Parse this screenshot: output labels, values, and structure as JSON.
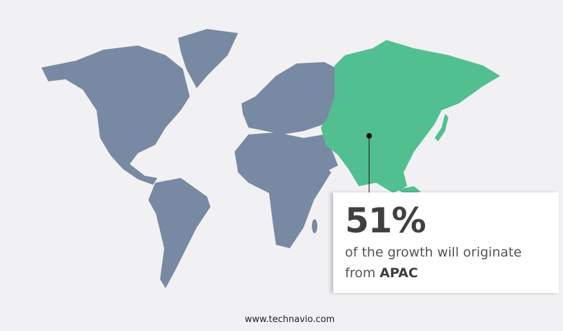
{
  "colors": {
    "background": "#f1f1f3",
    "land": "#7889a3",
    "highlight": "#52bf90",
    "text": "#404040"
  },
  "highlighted_region": "APAC",
  "callout": {
    "value": "51%",
    "line1": "of the growth will originate",
    "line2_prefix": "from",
    "region": "APAC"
  },
  "footer": "www.technavio.com"
}
